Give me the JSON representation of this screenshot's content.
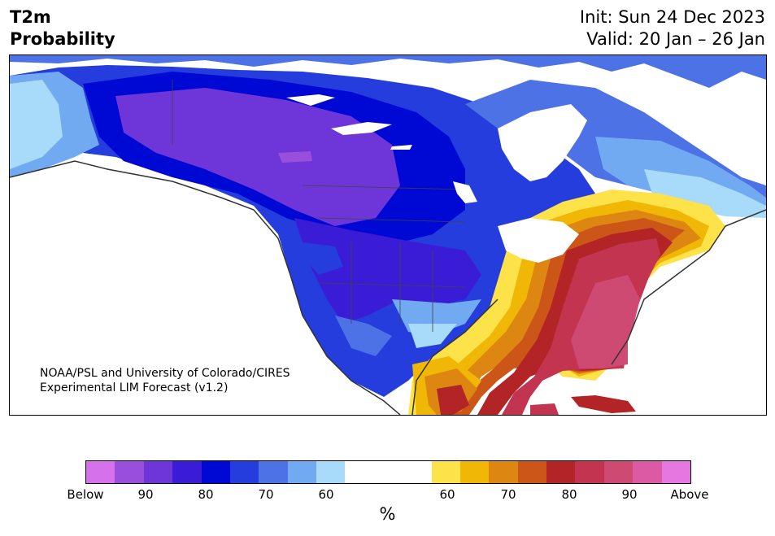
{
  "header": {
    "title_line1": "T2m",
    "title_line2": "Probability",
    "init_text": "Init: Sun 24 Dec 2023",
    "valid_text": "Valid: 20 Jan – 26 Jan"
  },
  "map": {
    "credit_line1": "NOAA/PSL and University of Colorado/CIRES",
    "credit_line2": "Experimental LIM Forecast (v1.2)"
  },
  "colorbar": {
    "units_label": "%",
    "tick_labels": [
      "Below",
      "90",
      "80",
      "70",
      "60",
      "60",
      "70",
      "80",
      "90",
      "Above"
    ],
    "colors": {
      "below": [
        "#d571ea",
        "#9a4fdc",
        "#6e36d8",
        "#3b1cd6",
        "#0008d4",
        "#243ddc",
        "#4d72e6",
        "#72aaf2",
        "#a8daf9"
      ],
      "neutral": "#ffffff",
      "above": [
        "#fde24a",
        "#f1b707",
        "#de8612",
        "#cc5618",
        "#b32427",
        "#c23450",
        "#cf4a73",
        "#dc5aa4",
        "#e676e0"
      ]
    }
  }
}
